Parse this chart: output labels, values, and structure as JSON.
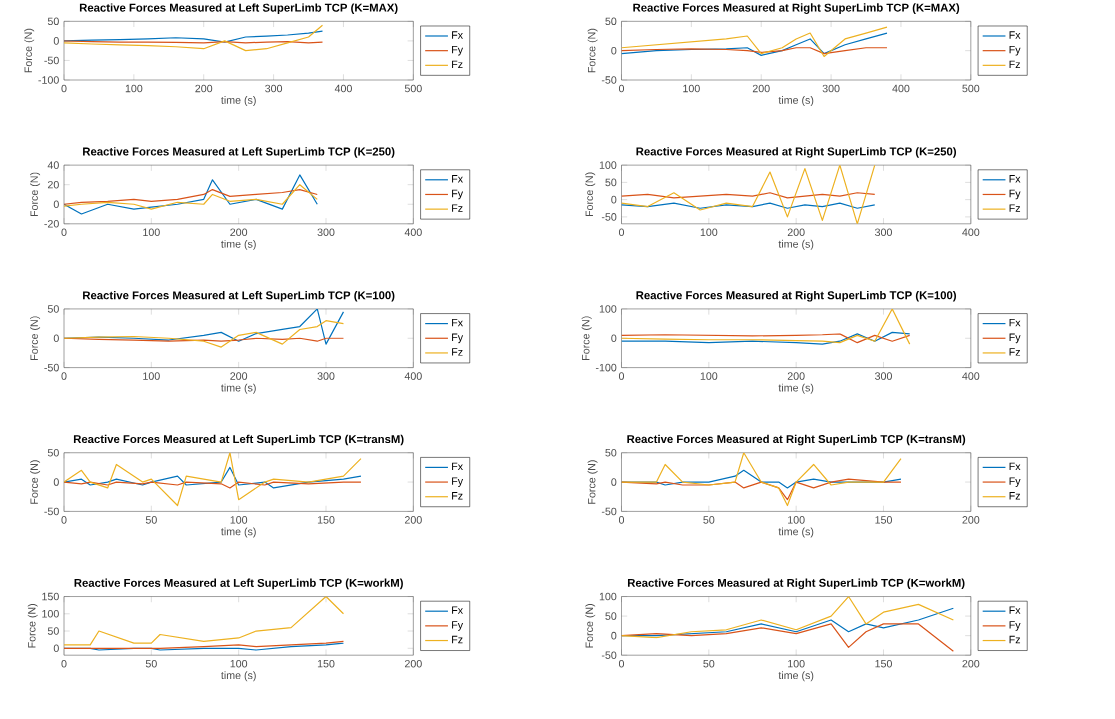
{
  "chart_data": [
    {
      "type": "line",
      "title": "Reactive Forces Measured at Left SuperLimb TCP (K=MAX)",
      "xlabel": "time (s)",
      "ylabel": "Force (N)",
      "legend": "right",
      "xlim": [
        0,
        500
      ],
      "ylim": [
        -100,
        50
      ],
      "xticks": [
        0,
        100,
        200,
        300,
        400,
        500
      ],
      "yticks": [
        -100,
        -50,
        0,
        50
      ],
      "x": [
        0,
        40,
        80,
        120,
        160,
        200,
        230,
        260,
        290,
        320,
        350,
        370
      ],
      "series": [
        {
          "name": "Fx",
          "color": "#0072bd",
          "values": [
            0,
            2,
            3,
            5,
            8,
            5,
            -3,
            10,
            12,
            15,
            20,
            25
          ]
        },
        {
          "name": "Fy",
          "color": "#d95319",
          "values": [
            0,
            -2,
            -3,
            -3,
            -4,
            -5,
            -2,
            -5,
            -3,
            -2,
            -5,
            -3
          ]
        },
        {
          "name": "Fz",
          "color": "#edb120",
          "values": [
            -5,
            -8,
            -10,
            -12,
            -15,
            -20,
            0,
            -25,
            -20,
            -5,
            10,
            40
          ]
        }
      ]
    },
    {
      "type": "line",
      "title": "Reactive Forces Measured at Right SuperLimb TCP (K=MAX)",
      "xlabel": "time (s)",
      "ylabel": "Force (N)",
      "legend": "right",
      "xlim": [
        0,
        500
      ],
      "ylim": [
        -50,
        50
      ],
      "xticks": [
        0,
        100,
        200,
        300,
        400,
        500
      ],
      "yticks": [
        -50,
        0,
        50
      ],
      "x": [
        0,
        50,
        100,
        150,
        180,
        200,
        230,
        250,
        270,
        290,
        320,
        350,
        380
      ],
      "series": [
        {
          "name": "Fx",
          "color": "#0072bd",
          "values": [
            -5,
            0,
            2,
            3,
            5,
            -8,
            0,
            10,
            20,
            -5,
            10,
            20,
            30
          ]
        },
        {
          "name": "Fy",
          "color": "#d95319",
          "values": [
            0,
            2,
            3,
            2,
            0,
            -3,
            0,
            5,
            5,
            -5,
            0,
            5,
            5
          ]
        },
        {
          "name": "Fz",
          "color": "#edb120",
          "values": [
            5,
            10,
            15,
            20,
            25,
            -5,
            5,
            20,
            30,
            -10,
            20,
            30,
            40
          ]
        }
      ]
    },
    {
      "type": "line",
      "title": "Reactive Forces Measured at Left SuperLimb TCP (K=250)",
      "xlabel": "time (s)",
      "ylabel": "Force (N)",
      "legend": "right",
      "xlim": [
        0,
        400
      ],
      "ylim": [
        -20,
        40
      ],
      "xticks": [
        0,
        100,
        200,
        300,
        400
      ],
      "yticks": [
        -20,
        0,
        20,
        40
      ],
      "x": [
        0,
        20,
        50,
        80,
        100,
        130,
        160,
        170,
        190,
        220,
        250,
        270,
        290
      ],
      "series": [
        {
          "name": "Fx",
          "color": "#0072bd",
          "values": [
            0,
            -10,
            0,
            -5,
            -3,
            0,
            5,
            25,
            0,
            5,
            -5,
            30,
            0
          ]
        },
        {
          "name": "Fy",
          "color": "#d95319",
          "values": [
            0,
            2,
            3,
            5,
            3,
            5,
            10,
            15,
            8,
            10,
            12,
            15,
            10
          ]
        },
        {
          "name": "Fz",
          "color": "#edb120",
          "values": [
            -2,
            0,
            2,
            0,
            -5,
            2,
            0,
            10,
            3,
            5,
            0,
            20,
            5
          ]
        }
      ]
    },
    {
      "type": "line",
      "title": "Reactive Forces Measured at Right SuperLimb TCP (K=250)",
      "xlabel": "time (s)",
      "ylabel": "Force (N)",
      "legend": "right",
      "xlim": [
        0,
        400
      ],
      "ylim": [
        -70,
        100
      ],
      "xticks": [
        0,
        100,
        200,
        300,
        400
      ],
      "yticks": [
        -50,
        0,
        50,
        100
      ],
      "x": [
        0,
        30,
        60,
        90,
        120,
        150,
        170,
        190,
        210,
        230,
        250,
        270,
        290
      ],
      "series": [
        {
          "name": "Fx",
          "color": "#0072bd",
          "values": [
            -15,
            -20,
            -10,
            -25,
            -15,
            -20,
            -10,
            -25,
            -15,
            -20,
            -10,
            -25,
            -15
          ]
        },
        {
          "name": "Fy",
          "color": "#d95319",
          "values": [
            10,
            15,
            5,
            10,
            15,
            10,
            20,
            5,
            10,
            15,
            10,
            20,
            15
          ]
        },
        {
          "name": "Fz",
          "color": "#edb120",
          "values": [
            -10,
            -20,
            20,
            -30,
            -10,
            -20,
            80,
            -50,
            90,
            -60,
            100,
            -70,
            100
          ]
        }
      ]
    },
    {
      "type": "line",
      "title": "Reactive Forces Measured at Left SuperLimb TCP (K=100)",
      "xlabel": "time (s)",
      "ylabel": "Force (N)",
      "legend": "right",
      "xlim": [
        0,
        400
      ],
      "ylim": [
        -50,
        50
      ],
      "xticks": [
        0,
        100,
        200,
        300,
        400
      ],
      "yticks": [
        -50,
        0,
        50
      ],
      "x": [
        0,
        40,
        80,
        120,
        160,
        180,
        200,
        220,
        250,
        270,
        290,
        300,
        320
      ],
      "series": [
        {
          "name": "Fx",
          "color": "#0072bd",
          "values": [
            0,
            2,
            0,
            -3,
            5,
            10,
            -5,
            8,
            15,
            20,
            50,
            -10,
            45
          ]
        },
        {
          "name": "Fy",
          "color": "#d95319",
          "values": [
            0,
            -2,
            -3,
            -5,
            -3,
            -5,
            -3,
            0,
            -2,
            0,
            -5,
            0,
            0
          ]
        },
        {
          "name": "Fz",
          "color": "#edb120",
          "values": [
            0,
            2,
            3,
            0,
            -5,
            -15,
            5,
            10,
            -10,
            15,
            20,
            30,
            25
          ]
        }
      ]
    },
    {
      "type": "line",
      "title": "Reactive Forces Measured at Right SuperLimb TCP (K=100)",
      "xlabel": "time (s)",
      "ylabel": "Force (N)",
      "legend": "right",
      "xlim": [
        0,
        400
      ],
      "ylim": [
        -100,
        100
      ],
      "xticks": [
        0,
        100,
        200,
        300,
        400
      ],
      "yticks": [
        -100,
        0,
        100
      ],
      "x": [
        0,
        50,
        100,
        150,
        200,
        230,
        250,
        270,
        290,
        310,
        330
      ],
      "series": [
        {
          "name": "Fx",
          "color": "#0072bd",
          "values": [
            -10,
            -10,
            -15,
            -10,
            -15,
            -20,
            -10,
            15,
            -10,
            20,
            15
          ]
        },
        {
          "name": "Fy",
          "color": "#d95319",
          "values": [
            10,
            12,
            10,
            8,
            10,
            12,
            15,
            -15,
            10,
            -10,
            10
          ]
        },
        {
          "name": "Fz",
          "color": "#edb120",
          "values": [
            0,
            -3,
            -5,
            -5,
            -8,
            -10,
            -15,
            10,
            -10,
            100,
            -20
          ]
        }
      ]
    },
    {
      "type": "line",
      "title": "Reactive Forces Measured at Left SuperLimb TCP (K=transM)",
      "xlabel": "time (s)",
      "ylabel": "Force (N)",
      "legend": "right",
      "xlim": [
        0,
        200
      ],
      "ylim": [
        -50,
        50
      ],
      "xticks": [
        0,
        50,
        100,
        150,
        200
      ],
      "yticks": [
        -50,
        0,
        50
      ],
      "x": [
        0,
        10,
        15,
        25,
        30,
        45,
        50,
        65,
        70,
        90,
        95,
        100,
        115,
        120,
        140,
        160,
        170
      ],
      "series": [
        {
          "name": "Fx",
          "color": "#0072bd",
          "values": [
            0,
            5,
            -5,
            0,
            5,
            -5,
            0,
            10,
            -5,
            0,
            25,
            -5,
            0,
            -10,
            0,
            5,
            10
          ]
        },
        {
          "name": "Fy",
          "color": "#d95319",
          "values": [
            0,
            -3,
            0,
            -5,
            0,
            -3,
            0,
            -5,
            0,
            -3,
            -10,
            0,
            -5,
            0,
            -3,
            0,
            0
          ]
        },
        {
          "name": "Fz",
          "color": "#edb120",
          "values": [
            0,
            20,
            0,
            -10,
            30,
            0,
            5,
            -40,
            10,
            0,
            50,
            -30,
            0,
            5,
            0,
            10,
            40
          ]
        }
      ]
    },
    {
      "type": "line",
      "title": "Reactive Forces Measured at Right SuperLimb TCP (K=transM)",
      "xlabel": "time (s)",
      "ylabel": "Force (N)",
      "legend": "right",
      "xlim": [
        0,
        200
      ],
      "ylim": [
        -50,
        50
      ],
      "xticks": [
        0,
        50,
        100,
        150,
        200
      ],
      "yticks": [
        -50,
        0,
        50
      ],
      "x": [
        0,
        20,
        25,
        35,
        50,
        65,
        70,
        80,
        90,
        95,
        100,
        110,
        120,
        130,
        150,
        160
      ],
      "series": [
        {
          "name": "Fx",
          "color": "#0072bd",
          "values": [
            0,
            0,
            -5,
            0,
            0,
            10,
            20,
            0,
            0,
            -10,
            0,
            5,
            0,
            0,
            0,
            5
          ]
        },
        {
          "name": "Fy",
          "color": "#d95319",
          "values": [
            0,
            -3,
            0,
            -5,
            -5,
            0,
            -10,
            0,
            -10,
            -30,
            0,
            -10,
            0,
            5,
            0,
            0
          ]
        },
        {
          "name": "Fz",
          "color": "#edb120",
          "values": [
            0,
            0,
            30,
            0,
            -5,
            0,
            50,
            0,
            -10,
            -40,
            0,
            30,
            -5,
            0,
            0,
            40
          ]
        }
      ]
    },
    {
      "type": "line",
      "title": "Reactive Forces Measured at Left SuperLimb TCP (K=workM)",
      "xlabel": "time (s)",
      "ylabel": "Force (N)",
      "legend": "right",
      "xlim": [
        0,
        200
      ],
      "ylim": [
        -20,
        150
      ],
      "xticks": [
        0,
        50,
        100,
        150,
        200
      ],
      "yticks": [
        0,
        50,
        100,
        150
      ],
      "x": [
        0,
        15,
        20,
        40,
        50,
        55,
        80,
        100,
        110,
        130,
        150,
        160
      ],
      "series": [
        {
          "name": "Fx",
          "color": "#0072bd",
          "values": [
            0,
            0,
            -5,
            0,
            0,
            -5,
            0,
            0,
            -5,
            5,
            10,
            15
          ]
        },
        {
          "name": "Fy",
          "color": "#d95319",
          "values": [
            0,
            0,
            0,
            0,
            0,
            0,
            5,
            10,
            5,
            10,
            15,
            20
          ]
        },
        {
          "name": "Fz",
          "color": "#edb120",
          "values": [
            10,
            10,
            50,
            15,
            15,
            40,
            20,
            30,
            50,
            60,
            150,
            100
          ]
        }
      ]
    },
    {
      "type": "line",
      "title": "Reactive Forces Measured at Right SuperLimb TCP (K=workM)",
      "xlabel": "time (s)",
      "ylabel": "Force (N)",
      "legend": "right",
      "xlim": [
        0,
        200
      ],
      "ylim": [
        -50,
        100
      ],
      "xticks": [
        0,
        50,
        100,
        150,
        200
      ],
      "yticks": [
        -50,
        0,
        50,
        100
      ],
      "x": [
        0,
        20,
        40,
        60,
        80,
        100,
        120,
        130,
        140,
        150,
        170,
        190
      ],
      "series": [
        {
          "name": "Fx",
          "color": "#0072bd",
          "values": [
            0,
            0,
            5,
            10,
            30,
            10,
            40,
            10,
            30,
            20,
            40,
            70
          ]
        },
        {
          "name": "Fy",
          "color": "#d95319",
          "values": [
            0,
            5,
            0,
            5,
            20,
            5,
            30,
            -30,
            10,
            30,
            30,
            -40
          ]
        },
        {
          "name": "Fz",
          "color": "#edb120",
          "values": [
            0,
            -5,
            10,
            15,
            40,
            15,
            50,
            100,
            30,
            60,
            80,
            40
          ]
        }
      ]
    }
  ]
}
